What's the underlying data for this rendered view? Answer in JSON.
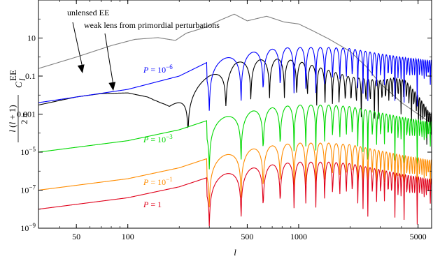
{
  "chart_data": {
    "type": "line",
    "title": "",
    "xlabel": "l",
    "ylabel": "l (l + 1) / 2π  C_l^EE",
    "xscale": "log",
    "yscale": "log",
    "xlim": [
      30,
      6000
    ],
    "ylim": [
      1e-09,
      1000
    ],
    "grid": false,
    "x_ticks": [
      {
        "v": 50,
        "label": "50"
      },
      {
        "v": 100,
        "label": "100"
      },
      {
        "v": 500,
        "label": "500"
      },
      {
        "v": 1000,
        "label": "1000"
      },
      {
        "v": 5000,
        "label": "5000"
      }
    ],
    "y_ticks": [
      {
        "v": 10,
        "label": "10"
      },
      {
        "v": 0.1,
        "label": "0.1"
      },
      {
        "v": 0.001,
        "label": "0.001"
      },
      {
        "v": 1e-05,
        "label": "10",
        "sup": "−5"
      },
      {
        "v": 1e-07,
        "label": "10",
        "sup": "−7"
      },
      {
        "v": 1e-09,
        "label": "10",
        "sup": "−9"
      }
    ],
    "annotations": [
      {
        "text": "unlensed EE",
        "at_x": 45,
        "at_y": 0.3
      },
      {
        "text": "weak lens from primordial perturbations",
        "at_x": 68,
        "at_y": 0.012
      }
    ],
    "series": [
      {
        "key": "unlensed",
        "color": "#808080",
        "anchors": [
          [
            30,
            0.25
          ],
          [
            50,
            1.0
          ],
          [
            80,
            4.0
          ],
          [
            110,
            8.5
          ],
          [
            150,
            10.5
          ],
          [
            190,
            7.5
          ],
          [
            220,
            18
          ],
          [
            280,
            35
          ],
          [
            350,
            90
          ],
          [
            420,
            180
          ],
          [
            500,
            80
          ],
          [
            650,
            140
          ],
          [
            820,
            70
          ],
          [
            1000,
            55
          ],
          [
            1200,
            25
          ],
          [
            1500,
            9
          ],
          [
            2000,
            2
          ],
          [
            2500,
            0.3
          ],
          [
            3000,
            0.04
          ],
          [
            3500,
            0.012
          ],
          [
            4000,
            0.004
          ],
          [
            5000,
            0.001
          ],
          [
            5800,
            0.0004
          ]
        ]
      },
      {
        "key": "black",
        "color": "#000000",
        "anchors": [
          [
            30,
            0.003
          ],
          [
            50,
            0.008
          ],
          [
            70,
            0.012
          ],
          [
            100,
            0.013
          ],
          [
            130,
            0.008
          ],
          [
            155,
            0.004
          ],
          [
            175,
            0.003
          ],
          [
            220,
            0.02
          ],
          [
            300,
            0.1
          ],
          [
            420,
            0.5
          ],
          [
            550,
            0.7
          ],
          [
            800,
            0.8
          ],
          [
            1000,
            0.6
          ],
          [
            1500,
            0.2
          ],
          [
            2000,
            0.09
          ],
          [
            2500,
            0.07
          ],
          [
            3000,
            0.06
          ],
          [
            3600,
            0.08
          ],
          [
            4200,
            0.06
          ],
          [
            5000,
            0.01
          ],
          [
            5800,
            0.0013
          ]
        ]
      },
      {
        "key": "P1e-6",
        "color": "#0000ff",
        "label": "P = 10",
        "label_sup": "−6",
        "anchors": [
          [
            30,
            0.004
          ],
          [
            100,
            0.02
          ],
          [
            200,
            0.1
          ],
          [
            300,
            0.6
          ],
          [
            400,
            1.0
          ],
          [
            600,
            2.2
          ],
          [
            800,
            3.0
          ],
          [
            1000,
            3.2
          ],
          [
            1500,
            3.2
          ],
          [
            2000,
            2.8
          ],
          [
            3000,
            1.5
          ],
          [
            4000,
            1.0
          ],
          [
            5000,
            0.8
          ],
          [
            5800,
            0.7
          ]
        ]
      },
      {
        "key": "P1e-3",
        "color": "#00d800",
        "label": "P = 10",
        "label_sup": "−3",
        "anchors": [
          [
            30,
            1e-05
          ],
          [
            100,
            4e-05
          ],
          [
            200,
            0.00015
          ],
          [
            300,
            0.0005
          ],
          [
            400,
            0.0008
          ],
          [
            600,
            0.0018
          ],
          [
            800,
            0.0025
          ],
          [
            1000,
            0.003
          ],
          [
            1500,
            0.003
          ],
          [
            2000,
            0.0025
          ],
          [
            3000,
            0.0012
          ],
          [
            4000,
            0.0007
          ],
          [
            5000,
            0.0005
          ],
          [
            5800,
            0.0004
          ]
        ]
      },
      {
        "key": "P1e-1",
        "color": "#ff8c00",
        "label": "P = 10",
        "label_sup": "−1",
        "anchors": [
          [
            30,
            1e-07
          ],
          [
            100,
            4e-07
          ],
          [
            200,
            1.5e-06
          ],
          [
            300,
            5e-06
          ],
          [
            400,
            8e-06
          ],
          [
            600,
            1.8e-05
          ],
          [
            800,
            2.5e-05
          ],
          [
            1000,
            3e-05
          ],
          [
            1500,
            3e-05
          ],
          [
            2000,
            2.5e-05
          ],
          [
            3000,
            1.2e-05
          ],
          [
            4000,
            7e-06
          ],
          [
            5000,
            5e-06
          ],
          [
            5800,
            4e-06
          ]
        ]
      },
      {
        "key": "P1",
        "color": "#e0001a",
        "label": "P = 1",
        "anchors": [
          [
            30,
            1e-08
          ],
          [
            100,
            4e-08
          ],
          [
            200,
            1.5e-07
          ],
          [
            300,
            5e-07
          ],
          [
            400,
            8e-07
          ],
          [
            600,
            1.8e-06
          ],
          [
            800,
            2.5e-06
          ],
          [
            1000,
            3e-06
          ],
          [
            1500,
            3e-06
          ],
          [
            2000,
            2.5e-06
          ],
          [
            3000,
            1.2e-06
          ],
          [
            4000,
            7e-07
          ],
          [
            5000,
            5e-07
          ],
          [
            5800,
            4e-07
          ]
        ]
      }
    ]
  }
}
